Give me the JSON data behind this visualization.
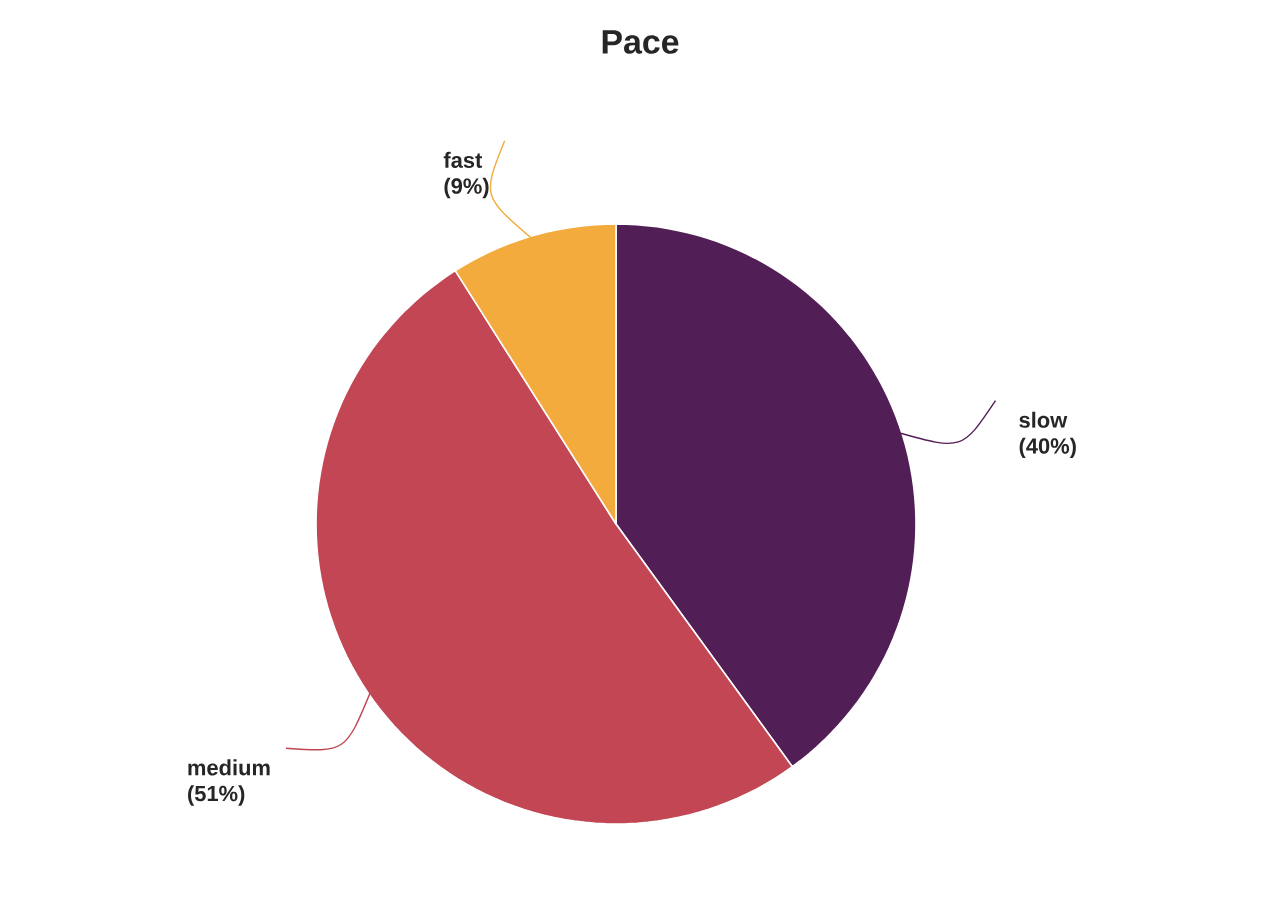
{
  "chart_data": {
    "type": "pie",
    "title": "Pace",
    "categories": [
      "slow",
      "medium",
      "fast"
    ],
    "values": [
      40,
      51,
      9
    ],
    "colors": [
      "#521e56",
      "#c34654",
      "#f2ab3c"
    ],
    "value_labels": [
      "(40%)",
      "(51%)",
      "(9%)"
    ]
  }
}
